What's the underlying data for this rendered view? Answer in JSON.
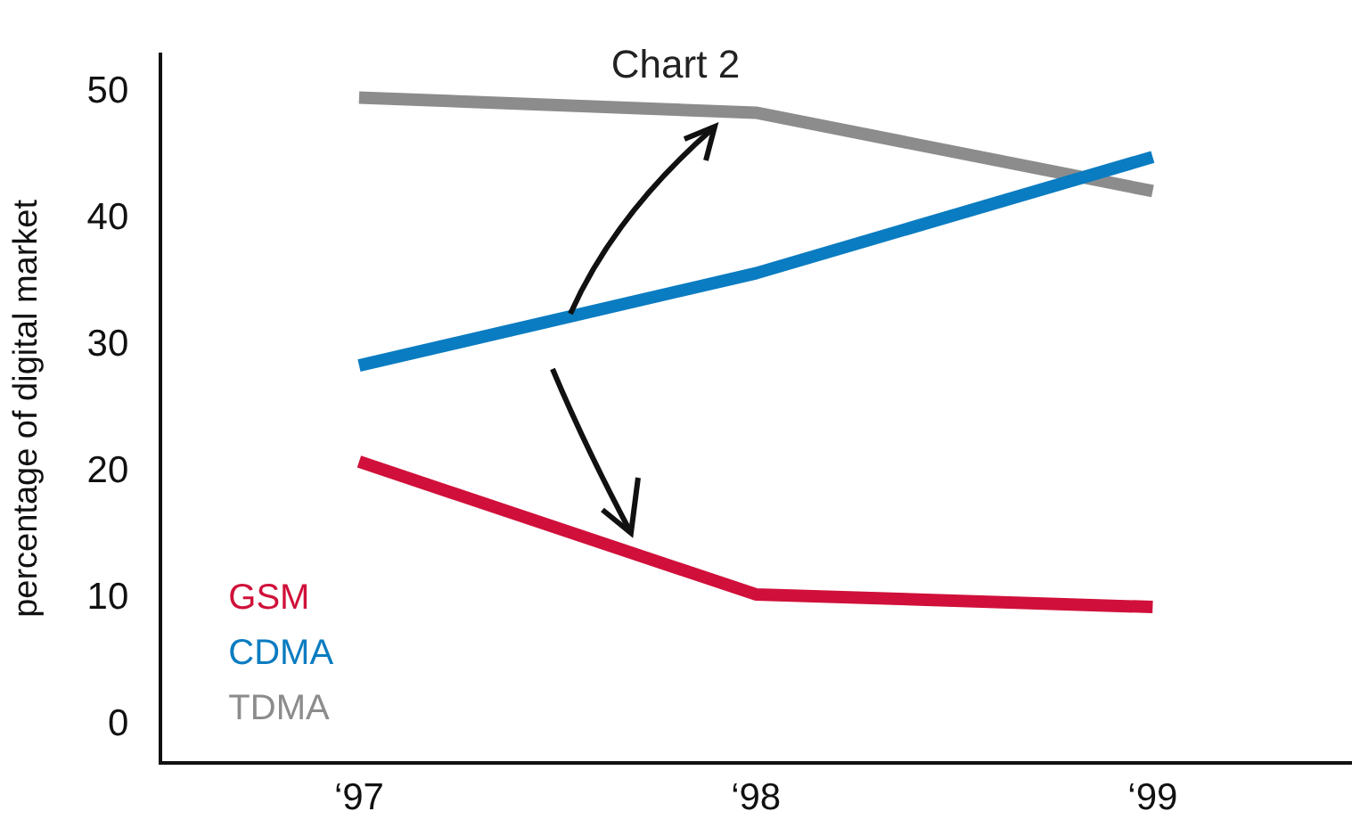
{
  "chart_data": {
    "type": "line",
    "title": "Chart 2",
    "ylabel": "percentage of digital market",
    "categories": [
      "‘97",
      "‘98",
      "‘99"
    ],
    "series": [
      {
        "name": "GSM",
        "color": "#d0103a",
        "values": [
          20.8,
          10.3,
          9.3
        ]
      },
      {
        "name": "CDMA",
        "color": "#0a7cc1",
        "values": [
          28.4,
          35.7,
          44.9
        ]
      },
      {
        "name": "TDMA",
        "color": "#8c8c8c",
        "values": [
          49.6,
          48.4,
          42.2
        ]
      }
    ],
    "ylim": [
      -3,
      53
    ],
    "yticks": [
      0,
      10,
      20,
      30,
      40,
      50
    ],
    "grid": false,
    "legend": "bottom left",
    "marker": "none",
    "line_style": "solid"
  }
}
